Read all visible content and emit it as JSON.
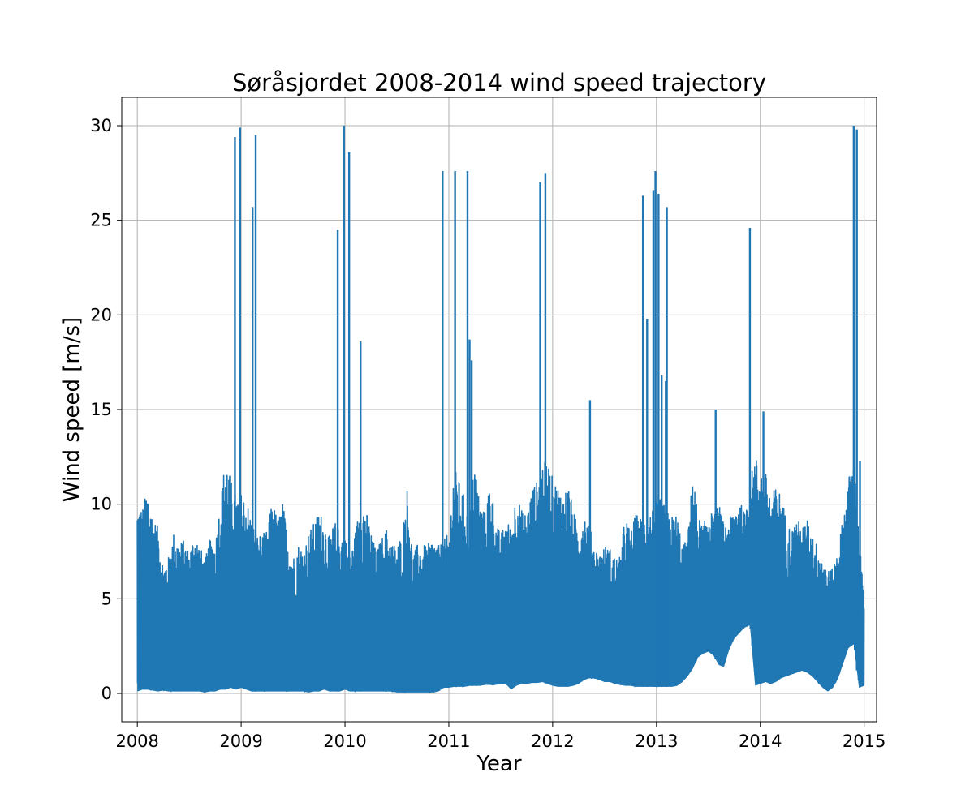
{
  "chart_data": {
    "type": "line",
    "title": "Søråsjordet 2008-2014 wind speed trajectory",
    "xlabel": "Year",
    "ylabel": "Wind speed [m/s]",
    "xlim": [
      2007.85,
      2015.12
    ],
    "ylim": [
      -1.5,
      31.5
    ],
    "xticks": [
      2008,
      2009,
      2010,
      2011,
      2012,
      2013,
      2014,
      2015
    ],
    "xtick_labels": [
      "2008",
      "2009",
      "2010",
      "2011",
      "2012",
      "2013",
      "2014",
      "2015"
    ],
    "yticks": [
      0,
      5,
      10,
      15,
      20,
      25,
      30
    ],
    "ytick_labels": [
      "0",
      "5",
      "10",
      "15",
      "20",
      "25",
      "30"
    ],
    "grid": true,
    "series_color": "#1f77b4",
    "series": [
      {
        "envelope_x": [
          2008.0,
          2008.05,
          2008.1,
          2008.15,
          2008.2,
          2008.25,
          2008.3,
          2008.35,
          2008.4,
          2008.45,
          2008.5,
          2008.55,
          2008.6,
          2008.65,
          2008.7,
          2008.75,
          2008.8,
          2008.85,
          2008.9,
          2008.95,
          2009.0,
          2009.05,
          2009.1,
          2009.15,
          2009.2,
          2009.25,
          2009.3,
          2009.35,
          2009.4,
          2009.45,
          2009.5,
          2009.55,
          2009.6,
          2009.65,
          2009.7,
          2009.75,
          2009.8,
          2009.85,
          2009.9,
          2009.95,
          2010.0,
          2010.05,
          2010.1,
          2010.15,
          2010.2,
          2010.25,
          2010.3,
          2010.35,
          2010.4,
          2010.45,
          2010.5,
          2010.55,
          2010.6,
          2010.65,
          2010.7,
          2010.75,
          2010.8,
          2010.85,
          2010.9,
          2010.95,
          2011.0,
          2011.05,
          2011.1,
          2011.15,
          2011.2,
          2011.25,
          2011.3,
          2011.35,
          2011.4,
          2011.45,
          2011.5,
          2011.55,
          2011.6,
          2011.65,
          2011.7,
          2011.75,
          2011.8,
          2011.85,
          2011.9,
          2011.95,
          2012.0,
          2012.05,
          2012.1,
          2012.15,
          2012.2,
          2012.25,
          2012.3,
          2012.35,
          2012.4,
          2012.45,
          2012.5,
          2012.55,
          2012.6,
          2012.65,
          2012.7,
          2012.75,
          2012.8,
          2012.85,
          2012.9,
          2012.95,
          2013.0,
          2013.05,
          2013.1,
          2013.15,
          2013.2,
          2013.25,
          2013.3,
          2013.35,
          2013.4,
          2013.45,
          2013.5,
          2013.55,
          2013.6,
          2013.65,
          2013.7,
          2013.75,
          2013.8,
          2013.85,
          2013.9,
          2013.95,
          2014.0,
          2014.05,
          2014.1,
          2014.15,
          2014.2,
          2014.25,
          2014.3,
          2014.35,
          2014.4,
          2014.45,
          2014.5,
          2014.55,
          2014.6,
          2014.65,
          2014.7,
          2014.75,
          2014.8,
          2014.85,
          2014.9,
          2014.95,
          2015.0
        ],
        "envelope_max": [
          10.0,
          9.8,
          10.9,
          9.3,
          8.8,
          6.8,
          7.2,
          8.5,
          8.0,
          8.1,
          7.5,
          8.5,
          7.9,
          7.0,
          8.2,
          8.0,
          10.2,
          12.6,
          11.3,
          10.5,
          10.6,
          10.3,
          9.2,
          8.4,
          8.4,
          8.6,
          10.3,
          9.2,
          10.1,
          8.4,
          7.2,
          7.9,
          7.6,
          8.5,
          9.0,
          9.7,
          9.1,
          8.3,
          9.1,
          8.6,
          8.4,
          7.2,
          8.6,
          10.2,
          9.8,
          8.6,
          7.5,
          8.2,
          8.7,
          8.0,
          7.8,
          8.5,
          10.9,
          7.4,
          7.9,
          7.8,
          7.9,
          8.2,
          7.8,
          8.1,
          8.5,
          12.0,
          11.2,
          10.4,
          9.4,
          12.5,
          10.0,
          9.6,
          11.5,
          9.1,
          8.4,
          9.2,
          8.8,
          10.7,
          9.7,
          9.5,
          10.9,
          11.2,
          12.2,
          12.3,
          11.4,
          11.0,
          10.5,
          11.1,
          9.7,
          8.6,
          9.6,
          9.0,
          7.8,
          7.4,
          7.8,
          7.7,
          7.2,
          7.2,
          9.5,
          8.5,
          9.5,
          9.3,
          9.5,
          9.7,
          10.2,
          10.3,
          9.6,
          9.4,
          9.5,
          7.8,
          8.2,
          11.8,
          9.4,
          8.8,
          9.9,
          9.3,
          10.1,
          8.9,
          9.2,
          9.8,
          10.2,
          9.5,
          11.2,
          12.6,
          12.0,
          11.7,
          10.5,
          10.9,
          10.6,
          9.2,
          8.6,
          9.3,
          8.8,
          9.2,
          8.5,
          7.8,
          7.3,
          6.5,
          6.6,
          7.8,
          9.4,
          11.4,
          12.3,
          8.4,
          5.2
        ],
        "envelope_min": [
          0.1,
          0.2,
          0.2,
          0.15,
          0.1,
          0.15,
          0.1,
          0.1,
          0.1,
          0.1,
          0.1,
          0.1,
          0.1,
          0.05,
          0.1,
          0.1,
          0.2,
          0.2,
          0.3,
          0.2,
          0.3,
          0.2,
          0.1,
          0.1,
          0.1,
          0.1,
          0.1,
          0.1,
          0.1,
          0.1,
          0.1,
          0.1,
          0.1,
          0.05,
          0.1,
          0.1,
          0.2,
          0.1,
          0.1,
          0.1,
          0.2,
          0.1,
          0.1,
          0.1,
          0.1,
          0.1,
          0.1,
          0.1,
          0.1,
          0.1,
          0.05,
          0.05,
          0.05,
          0.05,
          0.05,
          0.05,
          0.05,
          0.05,
          0.1,
          0.3,
          0.3,
          0.35,
          0.35,
          0.35,
          0.4,
          0.4,
          0.4,
          0.45,
          0.45,
          0.45,
          0.5,
          0.5,
          0.2,
          0.4,
          0.5,
          0.5,
          0.55,
          0.55,
          0.6,
          0.5,
          0.4,
          0.35,
          0.35,
          0.35,
          0.4,
          0.5,
          0.7,
          0.8,
          0.8,
          0.7,
          0.6,
          0.6,
          0.5,
          0.45,
          0.4,
          0.4,
          0.35,
          0.35,
          0.35,
          0.35,
          0.35,
          0.35,
          0.35,
          0.35,
          0.4,
          0.6,
          0.9,
          1.3,
          1.9,
          2.1,
          2.2,
          2.0,
          1.5,
          1.4,
          2.3,
          2.9,
          3.2,
          3.5,
          3.6,
          0.4,
          0.5,
          0.6,
          0.5,
          0.6,
          0.8,
          0.9,
          1.0,
          1.1,
          1.2,
          1.1,
          0.9,
          0.6,
          0.3,
          0.1,
          0.3,
          0.8,
          1.6,
          2.4,
          2.6,
          0.3,
          0.4
        ],
        "spikes": [
          {
            "x": 2008.94,
            "y": 29.4
          },
          {
            "x": 2008.99,
            "y": 29.9
          },
          {
            "x": 2009.11,
            "y": 25.7
          },
          {
            "x": 2009.14,
            "y": 29.5
          },
          {
            "x": 2009.93,
            "y": 24.5
          },
          {
            "x": 2009.99,
            "y": 30.0
          },
          {
            "x": 2010.04,
            "y": 28.6
          },
          {
            "x": 2010.15,
            "y": 18.6
          },
          {
            "x": 2010.94,
            "y": 27.6
          },
          {
            "x": 2011.06,
            "y": 27.6
          },
          {
            "x": 2011.18,
            "y": 27.6
          },
          {
            "x": 2011.2,
            "y": 18.7
          },
          {
            "x": 2011.22,
            "y": 17.6
          },
          {
            "x": 2011.88,
            "y": 27.0
          },
          {
            "x": 2011.93,
            "y": 27.5
          },
          {
            "x": 2012.36,
            "y": 15.5
          },
          {
            "x": 2012.87,
            "y": 26.3
          },
          {
            "x": 2012.91,
            "y": 19.8
          },
          {
            "x": 2012.97,
            "y": 26.6
          },
          {
            "x": 2012.99,
            "y": 27.6
          },
          {
            "x": 2013.02,
            "y": 26.4
          },
          {
            "x": 2013.05,
            "y": 16.8
          },
          {
            "x": 2013.09,
            "y": 16.5
          },
          {
            "x": 2013.1,
            "y": 25.7
          },
          {
            "x": 2013.57,
            "y": 15.0
          },
          {
            "x": 2013.9,
            "y": 24.6
          },
          {
            "x": 2014.03,
            "y": 14.9
          },
          {
            "x": 2014.9,
            "y": 30.0
          },
          {
            "x": 2014.93,
            "y": 29.8
          },
          {
            "x": 2014.96,
            "y": 12.3
          }
        ]
      }
    ]
  }
}
